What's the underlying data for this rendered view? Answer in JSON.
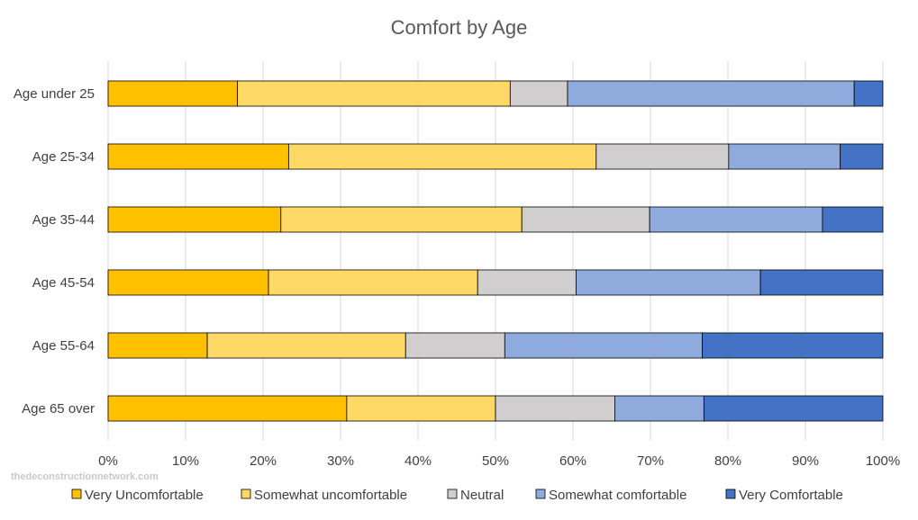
{
  "watermark": "thedeconstructionnetwork.com",
  "chart_data": {
    "type": "bar",
    "orientation": "horizontal",
    "stacked": "percent",
    "title": "Comfort by Age",
    "xlabel": "",
    "ylabel": "",
    "xlim": [
      0,
      100
    ],
    "x_ticks": [
      "0%",
      "10%",
      "20%",
      "30%",
      "40%",
      "50%",
      "60%",
      "70%",
      "80%",
      "90%",
      "100%"
    ],
    "grid": "vertical",
    "legend_position": "bottom",
    "categories": [
      "Age under 25",
      "Age 25-34",
      "Age 35-44",
      "Age 45-54",
      "Age 55-64",
      "Age 65 over"
    ],
    "series": [
      {
        "name": "Very Uncomfortable",
        "color": "#FFC000",
        "values": [
          16.7,
          23.3,
          22.3,
          20.7,
          12.8,
          30.8
        ]
      },
      {
        "name": "Somewhat uncomfortable",
        "color": "#FFD966",
        "values": [
          35.2,
          39.7,
          31.1,
          27.0,
          25.6,
          19.2
        ]
      },
      {
        "name": "Neutral",
        "color": "#D0CECE",
        "values": [
          7.4,
          17.1,
          16.5,
          12.7,
          12.8,
          15.4
        ]
      },
      {
        "name": "Somewhat comfortable",
        "color": "#8FAADC",
        "values": [
          37.0,
          14.4,
          22.3,
          23.8,
          25.5,
          11.5
        ]
      },
      {
        "name": "Very Comfortable",
        "color": "#4472C4",
        "values": [
          3.7,
          5.5,
          7.8,
          15.8,
          23.3,
          23.1
        ]
      }
    ]
  }
}
